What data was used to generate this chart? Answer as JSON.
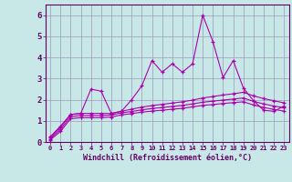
{
  "xlabel": "Windchill (Refroidissement éolien,°C)",
  "background_color": "#c8e8e8",
  "plot_bg_color": "#c8e8e8",
  "line_color": "#aa00aa",
  "grid_color": "#9999bb",
  "border_color": "#660066",
  "xlim": [
    -0.5,
    23.5
  ],
  "ylim": [
    0,
    6.5
  ],
  "yticks": [
    0,
    1,
    2,
    3,
    4,
    5,
    6
  ],
  "xticks": [
    0,
    1,
    2,
    3,
    4,
    5,
    6,
    7,
    8,
    9,
    10,
    11,
    12,
    13,
    14,
    15,
    16,
    17,
    18,
    19,
    20,
    21,
    22,
    23
  ],
  "line1_y": [
    0.25,
    0.75,
    1.3,
    1.35,
    2.5,
    2.4,
    1.35,
    1.45,
    2.0,
    2.65,
    3.85,
    3.3,
    3.7,
    3.3,
    3.7,
    6.0,
    4.75,
    3.05,
    3.85,
    2.55,
    1.95,
    1.5,
    1.45,
    1.7
  ],
  "line2_y": [
    0.2,
    0.7,
    1.3,
    1.35,
    1.35,
    1.35,
    1.35,
    1.45,
    1.55,
    1.65,
    1.72,
    1.78,
    1.84,
    1.9,
    1.98,
    2.08,
    2.15,
    2.22,
    2.28,
    2.35,
    2.18,
    2.05,
    1.95,
    1.85
  ],
  "line3_y": [
    0.15,
    0.6,
    1.2,
    1.25,
    1.25,
    1.25,
    1.28,
    1.38,
    1.44,
    1.52,
    1.58,
    1.63,
    1.68,
    1.73,
    1.8,
    1.88,
    1.93,
    1.98,
    2.03,
    2.08,
    1.92,
    1.8,
    1.7,
    1.62
  ],
  "line4_y": [
    0.1,
    0.5,
    1.1,
    1.15,
    1.15,
    1.15,
    1.18,
    1.28,
    1.34,
    1.41,
    1.46,
    1.5,
    1.55,
    1.59,
    1.66,
    1.73,
    1.77,
    1.82,
    1.86,
    1.9,
    1.75,
    1.63,
    1.54,
    1.46
  ]
}
